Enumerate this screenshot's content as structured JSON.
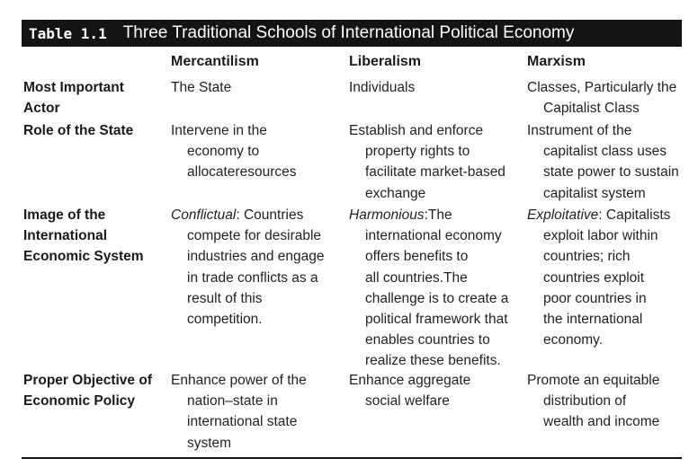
{
  "table": {
    "number": "Table 1.1",
    "title": "Three Traditional Schools of International Political Economy",
    "columns": [
      "Mercantilism",
      "Liberalism",
      "Marxism"
    ],
    "rows": [
      {
        "label": [
          "Most Important",
          "Actor"
        ],
        "cells": [
          {
            "lines": [
              "The State"
            ]
          },
          {
            "lines": [
              "Individuals"
            ]
          },
          {
            "lines": [
              "Classes, Particularly the",
              "Capitalist Class"
            ]
          }
        ]
      },
      {
        "label": [
          "Role of the State"
        ],
        "cells": [
          {
            "lines": [
              "Intervene in the",
              "economy to",
              "allocateresources"
            ]
          },
          {
            "lines": [
              "Establish and enforce",
              "property rights to",
              "facilitate market-based",
              "exchange"
            ]
          },
          {
            "lines": [
              "Instrument of the",
              "capitalist class uses",
              "state power to sustain",
              "capitalist system"
            ]
          }
        ]
      },
      {
        "label": [
          "Image of the",
          "International",
          "Economic System"
        ],
        "cells": [
          {
            "lead": "Conflictual",
            "lines": [
              ": Countries",
              "compete for desirable",
              "industries and engage",
              "in trade conflicts as a",
              "result of this",
              "competition."
            ]
          },
          {
            "lead": "Harmonious",
            "lines": [
              ":The",
              "international economy",
              "offers benefits to",
              "all countries.The",
              "challenge is to create a",
              "political framework that",
              "enables countries to",
              "realize these benefits."
            ]
          },
          {
            "lead": "Exploitative",
            "lines": [
              ": Capitalists",
              "exploit labor within",
              "countries; rich",
              "countries exploit",
              "poor countries in",
              "the international",
              "economy."
            ]
          }
        ]
      },
      {
        "label": [
          "Proper Objective of",
          "Economic Policy"
        ],
        "cells": [
          {
            "lines": [
              "Enhance power of the",
              "nation–state in",
              "international state",
              "system"
            ]
          },
          {
            "lines": [
              "Enhance aggregate",
              "social welfare"
            ]
          },
          {
            "lines": [
              "Promote an equitable",
              "distribution of",
              "wealth and income"
            ]
          }
        ]
      }
    ]
  }
}
